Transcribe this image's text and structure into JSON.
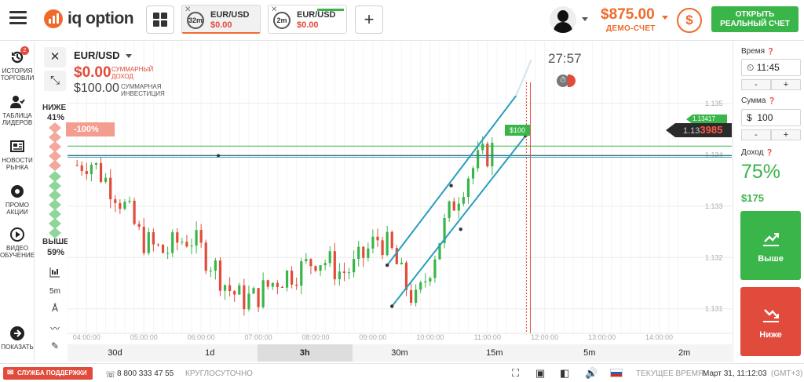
{
  "header": {
    "logo_text": "iq option",
    "tabs": [
      {
        "timer": "32m",
        "asset": "EUR/USD",
        "amount": "$0.00"
      },
      {
        "timer": "2m",
        "asset": "EUR/USD",
        "amount": "$0.00"
      }
    ],
    "balance": "$875.00",
    "account_type": "ДЕМО-СЧЕТ",
    "real_account_button": "ОТКРЫТЬ РЕАЛЬНЫЙ СЧЕТ"
  },
  "sidebar": {
    "items": [
      {
        "label": "ИСТОРИЯ ТОРГОВЛИ",
        "badge": "2"
      },
      {
        "label": "ТАБЛИЦА ЛИДЕРОВ"
      },
      {
        "label": "НОВОСТИ РЫНКА"
      },
      {
        "label": "ПРОМО АКЦИИ"
      },
      {
        "label": "ВИДЕО ОБУЧЕНИЕ"
      },
      {
        "label": "ПОКАЗАТЬ"
      }
    ]
  },
  "sentiment": {
    "below_label": "НИЖЕ",
    "below_value": "41%",
    "above_label": "ВЫШЕ",
    "above_value": "59%"
  },
  "tools": {
    "timeframe": "5m"
  },
  "chart": {
    "asset": "EUR/USD",
    "profit": "$0.00",
    "profit_label": "СУММАРНЫЙ ДОХОД",
    "investment": "$100.00",
    "investment_label": "СУММАРНАЯ ИНВЕСТИЦИЯ",
    "countdown": "27:57",
    "loss_marker": "-100%",
    "deal_tag": "$100",
    "price_level": "1.13417",
    "current_price_prefix": "1.13",
    "current_price_suffix": "3985",
    "y_ticks": [
      "1.135",
      "1.134",
      "1.133",
      "1.132",
      "1.131"
    ],
    "x_ticks": [
      "04:00:00",
      "05:00:00",
      "06:00:00",
      "07:00:00",
      "08:00:00",
      "09:00:00",
      "10:00:00",
      "11:00:00",
      "12:00:00",
      "13:00:00",
      "14:00:00"
    ],
    "periods": [
      "30d",
      "1d",
      "3h",
      "30m",
      "15m",
      "5m",
      "2m"
    ],
    "active_period": "3h"
  },
  "chart_data": {
    "type": "candlestick",
    "xlim": [
      "03:40",
      "14:30"
    ],
    "ylim": [
      1.1304,
      1.1359
    ],
    "y_ticks": [
      1.131,
      1.132,
      1.133,
      1.134,
      1.135
    ],
    "x_ticks": [
      "04:00:00",
      "05:00:00",
      "06:00:00",
      "07:00:00",
      "08:00:00",
      "09:00:00",
      "10:00:00",
      "11:00:00",
      "12:00:00",
      "13:00:00",
      "14:00:00"
    ],
    "close_path": [
      1.1338,
      1.1339,
      1.1336,
      1.1333,
      1.1329,
      1.1324,
      1.1322,
      1.1321,
      1.1323,
      1.1324,
      1.1321,
      1.1318,
      1.1314,
      1.1312,
      1.1312,
      1.1314,
      1.1316,
      1.1317,
      1.1318,
      1.132,
      1.1319,
      1.1317,
      1.1318,
      1.1321,
      1.1324,
      1.1321,
      1.1315,
      1.1311,
      1.1318,
      1.1325,
      1.1331,
      1.1336,
      1.1339,
      1.1341
    ],
    "price_levels": [
      1.13417,
      1.133985
    ]
  },
  "panel": {
    "time_label": "Время",
    "time_value": "11:45",
    "amount_label": "Сумма",
    "amount_currency": "$",
    "amount_value": "100",
    "income_label": "Доход",
    "payout_percent": "75%",
    "payout_amount": "$175",
    "up_label": "Выше",
    "down_label": "Ниже",
    "minus": "-",
    "plus": "+"
  },
  "footer": {
    "support": "СЛУЖБА ПОДДЕРЖКИ",
    "phone": "8 800 333 47 55",
    "hours": "КРУГЛОСУТОЧНО",
    "time_label": "ТЕКУЩЕЕ ВРЕМЯ:",
    "time_value": "Март 31, 11:12:03",
    "timezone": "(GMT+3)"
  },
  "colors": {
    "accent": "#ef6a2a",
    "up": "#3ab54a",
    "down": "#e14b3b",
    "trend": "#2a9dbf"
  }
}
